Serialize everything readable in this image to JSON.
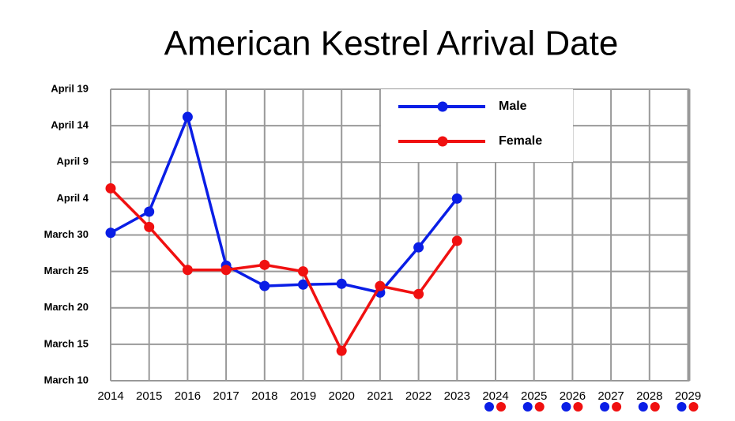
{
  "chart_data": {
    "type": "line",
    "title": "American Kestrel Arrival Date",
    "categories": [
      "2014",
      "2015",
      "2016",
      "2017",
      "2018",
      "2019",
      "2020",
      "2021",
      "2022",
      "2023",
      "2024",
      "2025",
      "2026",
      "2027",
      "2028",
      "2029"
    ],
    "series": [
      {
        "name": "Male",
        "color": "#0a1ee6",
        "values": [
          30.3,
          33.2,
          46.2,
          25.8,
          23.0,
          23.2,
          23.3,
          22.1,
          28.3,
          35.0,
          null,
          null,
          null,
          null,
          null,
          null
        ]
      },
      {
        "name": "Female",
        "color": "#f01010",
        "values": [
          36.4,
          31.1,
          25.2,
          25.2,
          25.9,
          25.0,
          14.1,
          23.0,
          21.9,
          29.2,
          null,
          null,
          null,
          null,
          null,
          null
        ]
      }
    ],
    "ylim": [
      10,
      50
    ],
    "yticks": [
      {
        "value": 10,
        "label": "March 10"
      },
      {
        "value": 15,
        "label": "March 15"
      },
      {
        "value": 20,
        "label": "March 20"
      },
      {
        "value": 25,
        "label": "March 25"
      },
      {
        "value": 30,
        "label": "March 30"
      },
      {
        "value": 35,
        "label": "April 4"
      },
      {
        "value": 40,
        "label": "April 9"
      },
      {
        "value": 45,
        "label": "April 14"
      },
      {
        "value": 50,
        "label": "April 19"
      }
    ],
    "grid": true,
    "legend": "top-right"
  }
}
